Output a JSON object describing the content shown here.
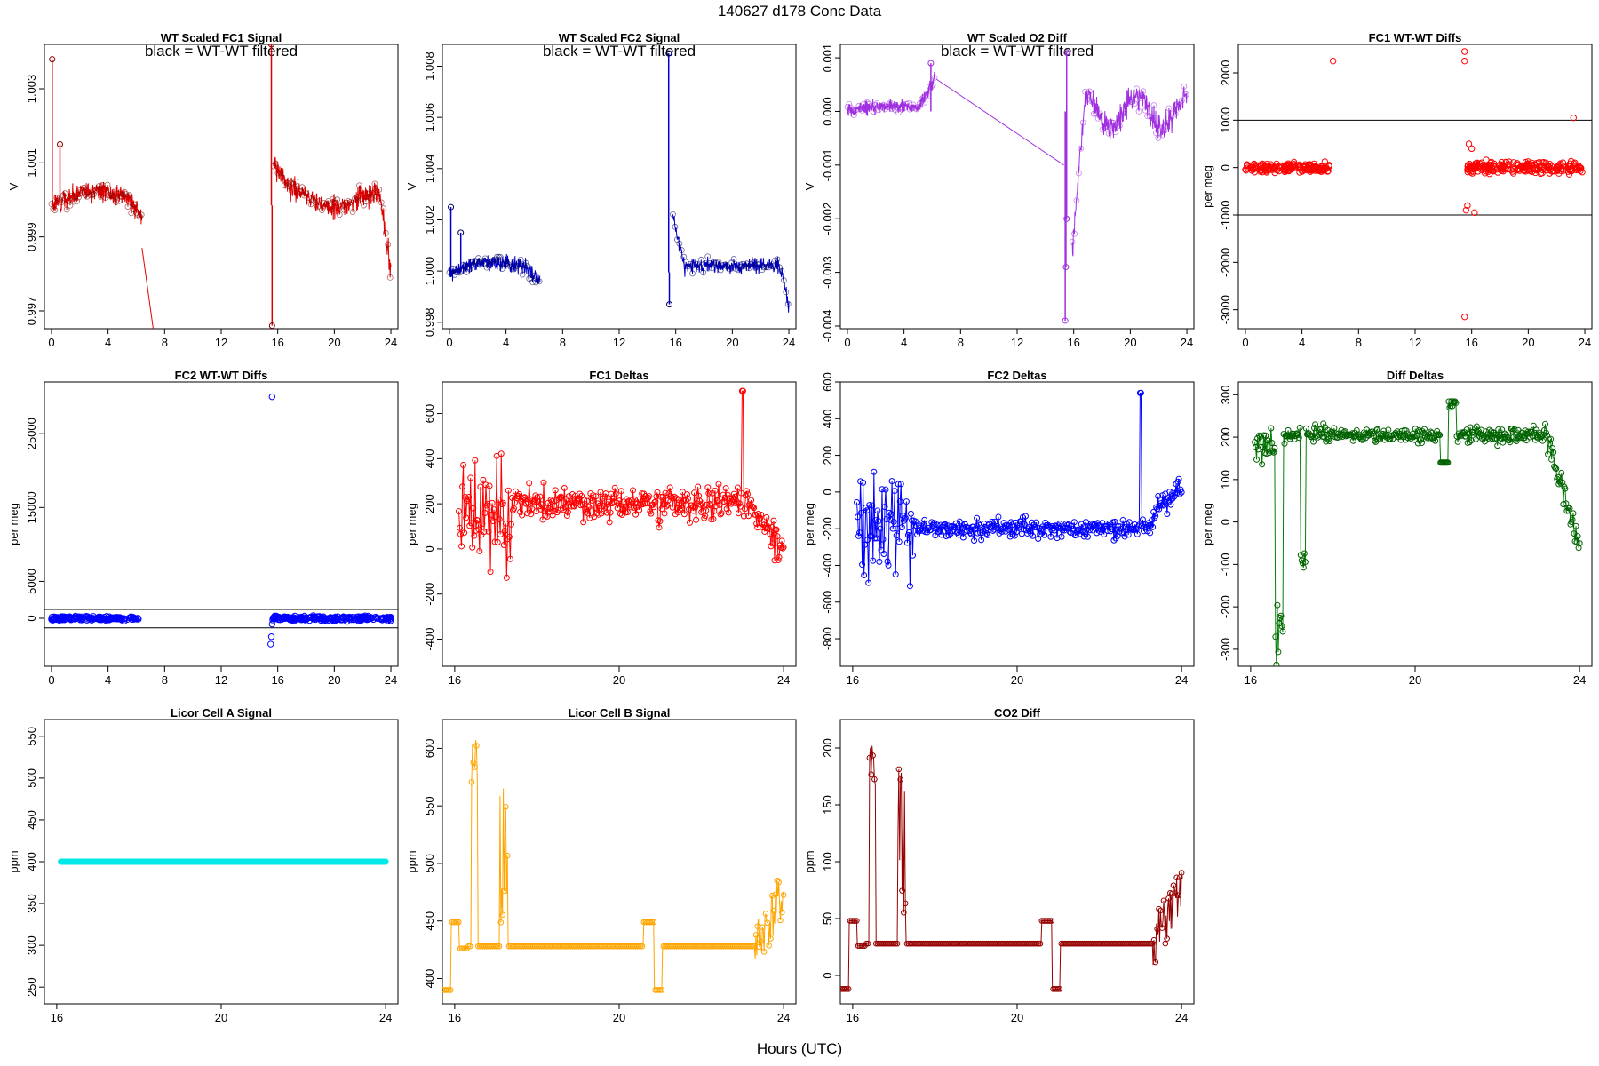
{
  "figure": {
    "super_title": "140627   d178   Conc Data",
    "xlabel": "Hours (UTC)"
  },
  "chart_data": [
    {
      "id": "p1",
      "type": "line",
      "title": "WT Scaled FC1 Signal",
      "subtitle": "black = WT-WT filtered",
      "ylabel": "V",
      "xlim": [
        -0.5,
        24.5
      ],
      "ylim": [
        0.99652,
        1.0042
      ],
      "xticks": [
        0,
        4,
        8,
        12,
        16,
        20,
        24
      ],
      "yticks": [
        0.997,
        0.999,
        1.001,
        1.003
      ],
      "ytick_labels": [
        "0.997",
        "0.999",
        "1.001",
        "1.003"
      ],
      "color": "#e00000",
      "marker_color": "#7a0000",
      "segments": [
        {
          "start": 0,
          "end": 6.4,
          "base": 0.99985,
          "amp": 0.0004,
          "noise": 0.00025,
          "shape": "arch"
        },
        {
          "start": 15.7,
          "end": 24,
          "base": 1.0,
          "amp": 0.0006,
          "noise": 0.0003,
          "shape": "fc1b"
        }
      ],
      "spikes": [
        {
          "x": 0.05,
          "y": 1.0038
        },
        {
          "x": 15.55,
          "y": 1.0042
        },
        {
          "x": 15.6,
          "y": 0.9966
        },
        {
          "x": 0.6,
          "y": 1.0015
        }
      ],
      "lines": [
        {
          "x": [
            6.4,
            7.2
          ],
          "y": [
            0.9987,
            0.9965
          ]
        }
      ]
    },
    {
      "id": "p2",
      "type": "line",
      "title": "WT Scaled FC2 Signal",
      "subtitle": "black = WT-WT filtered",
      "ylabel": "V",
      "xlim": [
        -0.5,
        24.5
      ],
      "ylim": [
        0.99775,
        1.00885
      ],
      "xticks": [
        0,
        4,
        8,
        12,
        16,
        20,
        24
      ],
      "yticks": [
        0.998,
        1.0,
        1.002,
        1.004,
        1.006,
        1.008
      ],
      "ytick_labels": [
        "0.998",
        "1.000",
        "1.002",
        "1.004",
        "1.006",
        "1.008"
      ],
      "color": "#0000c8",
      "marker_color": "#000060",
      "segments": [
        {
          "start": 0,
          "end": 6.4,
          "base": 0.99995,
          "amp": 0.0004,
          "noise": 0.0003,
          "shape": "arch"
        },
        {
          "start": 15.8,
          "end": 24,
          "base": 1.0002,
          "amp": 0.0003,
          "noise": 0.0003,
          "shape": "fc2b"
        }
      ],
      "spikes": [
        {
          "x": 0.1,
          "y": 1.0025
        },
        {
          "x": 0.8,
          "y": 1.0015
        },
        {
          "x": 15.5,
          "y": 1.0085
        },
        {
          "x": 15.55,
          "y": 0.9987
        }
      ],
      "lines": []
    },
    {
      "id": "p3",
      "type": "line",
      "title": "WT Scaled O2 Diff",
      "subtitle": "black = WT-WT filtered",
      "ylabel": "V",
      "xlim": [
        -0.5,
        24.5
      ],
      "ylim": [
        -0.00405,
        0.00125
      ],
      "xticks": [
        0,
        4,
        8,
        12,
        16,
        20,
        24
      ],
      "yticks": [
        -0.004,
        -0.003,
        -0.002,
        -0.001,
        0.0,
        0.001
      ],
      "ytick_labels": [
        "-0.004",
        "-0.003",
        "-0.002",
        "-0.001",
        "0.000",
        "0.001"
      ],
      "color": "#a030e0",
      "marker_color": "#a030e0",
      "segments": [
        {
          "start": 0,
          "end": 6.2,
          "base": 0.0,
          "amp": 0.0001,
          "noise": 0.00012,
          "shape": "o2a"
        },
        {
          "start": 15.9,
          "end": 24,
          "base": 0.0,
          "amp": 0.0003,
          "noise": 0.00025,
          "shape": "o2b"
        }
      ],
      "spikes": [
        {
          "x": 15.4,
          "y": -0.0039
        },
        {
          "x": 15.45,
          "y": -0.0029
        },
        {
          "x": 15.5,
          "y": -0.002
        },
        {
          "x": 5.9,
          "y": 0.0009
        },
        {
          "x": 15.5,
          "y": 0.0011
        }
      ],
      "lines": [
        {
          "x": [
            6.3,
            15.3
          ],
          "y": [
            0.0006,
            -0.001
          ]
        }
      ]
    },
    {
      "id": "p4",
      "type": "scatter",
      "title": "FC1 WT-WT Diffs",
      "ylabel": "per meg",
      "xlim": [
        -0.5,
        24.5
      ],
      "ylim": [
        -3400,
        2600
      ],
      "xticks": [
        0,
        4,
        8,
        12,
        16,
        20,
        24
      ],
      "yticks": [
        -3000,
        -2000,
        -1000,
        0,
        1000,
        2000
      ],
      "ytick_labels": [
        "-3000",
        "-2000",
        "-1000",
        "0",
        "1000",
        "2000"
      ],
      "hlines": [
        1000,
        -1000
      ],
      "color": "#ff0000",
      "clusters": [
        {
          "start": 0,
          "end": 6,
          "spread": 90
        },
        {
          "start": 15.7,
          "end": 23.9,
          "spread": 130
        }
      ],
      "outliers": [
        {
          "x": 6.2,
          "y": 2250
        },
        {
          "x": 15.5,
          "y": 2450
        },
        {
          "x": 15.5,
          "y": 2250
        },
        {
          "x": 15.5,
          "y": -3150
        },
        {
          "x": 15.6,
          "y": -900
        },
        {
          "x": 15.7,
          "y": -800
        },
        {
          "x": 16.2,
          "y": -950
        },
        {
          "x": 23.2,
          "y": 1050
        },
        {
          "x": 15.8,
          "y": 500
        },
        {
          "x": 16.0,
          "y": 400
        }
      ]
    },
    {
      "id": "p5",
      "type": "scatter",
      "title": "FC2 WT-WT Diffs",
      "ylabel": "per meg",
      "xlim": [
        -0.5,
        24.5
      ],
      "ylim": [
        -6500,
        32000
      ],
      "xticks": [
        0,
        4,
        8,
        12,
        16,
        20,
        24
      ],
      "yticks": [
        0,
        5000,
        15000,
        25000
      ],
      "ytick_labels": [
        "0",
        "5000",
        "15000",
        "25000"
      ],
      "hlines": [
        1200,
        -1300
      ],
      "color": "#0000ff",
      "clusters": [
        {
          "start": 0,
          "end": 6.2,
          "spread": 250
        },
        {
          "start": 15.6,
          "end": 24,
          "spread": 300
        }
      ],
      "outliers": [
        {
          "x": 15.6,
          "y": 30000
        },
        {
          "x": 15.5,
          "y": -3500
        },
        {
          "x": 15.55,
          "y": -2500
        },
        {
          "x": 15.6,
          "y": -800
        }
      ]
    },
    {
      "id": "p6",
      "type": "linepoints",
      "title": "FC1 Deltas",
      "ylabel": "per meg",
      "xlim": [
        15.7,
        24.3
      ],
      "ylim": [
        -520,
        740
      ],
      "xticks": [
        16,
        20,
        24
      ],
      "yticks": [
        -400,
        -200,
        0,
        200,
        400,
        600
      ],
      "ytick_labels": [
        "-400",
        "-200",
        "0",
        "200",
        "400",
        "600"
      ],
      "color": "#ff0000",
      "marker_color": "#ff0000",
      "seed": 11,
      "model": "fc1"
    },
    {
      "id": "p7",
      "type": "linepoints",
      "title": "FC2 Deltas",
      "ylabel": "per meg",
      "xlim": [
        15.7,
        24.3
      ],
      "ylim": [
        -950,
        600
      ],
      "xticks": [
        16,
        20,
        24
      ],
      "yticks": [
        -800,
        -600,
        -400,
        -200,
        0,
        200,
        400,
        600
      ],
      "ytick_labels": [
        "-800",
        "-600",
        "-400",
        "-200",
        "0",
        "200",
        "400",
        "600"
      ],
      "color": "#0000ff",
      "marker_color": "#0000ff",
      "seed": 21,
      "model": "fc2"
    },
    {
      "id": "p8",
      "type": "linepoints",
      "title": "Diff Deltas",
      "ylabel": "per meg",
      "xlim": [
        15.7,
        24.3
      ],
      "ylim": [
        -340,
        330
      ],
      "xticks": [
        16,
        20,
        24
      ],
      "yticks": [
        -300,
        -200,
        -100,
        0,
        100,
        200,
        300
      ],
      "ytick_labels": [
        "-300",
        "-200",
        "-100",
        "0",
        "100",
        "200",
        "300"
      ],
      "color": "#008000",
      "marker_color": "#006000",
      "seed": 31,
      "model": "diff"
    },
    {
      "id": "p9",
      "type": "flat",
      "title": "Licor Cell A Signal",
      "ylabel": "ppm",
      "xlim": [
        15.7,
        24.3
      ],
      "ylim": [
        230,
        570
      ],
      "xticks": [
        16,
        20,
        24
      ],
      "yticks": [
        250,
        300,
        350,
        400,
        450,
        500,
        550
      ],
      "ytick_labels": [
        "250",
        "300",
        "350",
        "400",
        "450",
        "500",
        "550"
      ],
      "value": 400,
      "x_start": 16.1,
      "x_end": 24,
      "color": "#00e8e8"
    },
    {
      "id": "p10",
      "type": "licor",
      "title": "Licor Cell B Signal",
      "ylabel": "ppm",
      "xlim": [
        15.7,
        24.3
      ],
      "ylim": [
        378,
        625
      ],
      "xticks": [
        16,
        20,
        24
      ],
      "yticks": [
        400,
        450,
        500,
        550,
        600
      ],
      "ytick_labels": [
        "400",
        "450",
        "500",
        "550",
        "600"
      ],
      "color": "#ffa500",
      "marker_color": "#ffa500",
      "base": 428,
      "low": 390,
      "step": 449,
      "peak": 610,
      "seed": 41
    },
    {
      "id": "p11",
      "type": "licor",
      "title": "CO2 Diff",
      "ylabel": "ppm",
      "xlim": [
        15.7,
        24.3
      ],
      "ylim": [
        -25,
        225
      ],
      "xticks": [
        16,
        20,
        24
      ],
      "yticks": [
        0,
        50,
        100,
        150,
        200
      ],
      "ytick_labels": [
        "0",
        "50",
        "100",
        "150",
        "200"
      ],
      "color": "#960000",
      "marker_color": "#960000",
      "base": 28,
      "low": -12,
      "step": 48,
      "peak": 205,
      "seed": 51
    }
  ]
}
